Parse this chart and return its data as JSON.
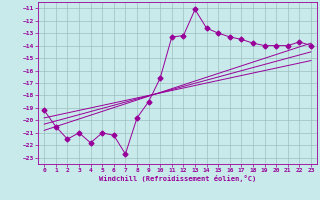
{
  "xlabel": "Windchill (Refroidissement éolien,°C)",
  "background_color": "#c8eaea",
  "grid_color": "#9dbfbf",
  "line_color": "#990099",
  "xlim": [
    -0.5,
    23.5
  ],
  "ylim": [
    -23.5,
    -10.5
  ],
  "xticks": [
    0,
    1,
    2,
    3,
    4,
    5,
    6,
    7,
    8,
    9,
    10,
    11,
    12,
    13,
    14,
    15,
    16,
    17,
    18,
    19,
    20,
    21,
    22,
    23
  ],
  "yticks": [
    -11,
    -12,
    -13,
    -14,
    -15,
    -16,
    -17,
    -18,
    -19,
    -20,
    -21,
    -22,
    -23
  ],
  "data_x": [
    0,
    1,
    2,
    3,
    4,
    5,
    6,
    7,
    8,
    9,
    10,
    11,
    12,
    13,
    14,
    15,
    16,
    17,
    18,
    19,
    20,
    21,
    22,
    23
  ],
  "data_y": [
    -19.2,
    -20.5,
    -21.5,
    -21.0,
    -21.8,
    -21.0,
    -21.2,
    -22.7,
    -19.8,
    -18.5,
    -16.6,
    -13.3,
    -13.2,
    -11.1,
    -12.6,
    -13.0,
    -13.3,
    -13.5,
    -13.8,
    -14.0,
    -14.0,
    -14.0,
    -13.7,
    -14.0
  ],
  "ref_lines": [
    {
      "x": [
        0,
        23
      ],
      "y": [
        -20.8,
        -13.8
      ]
    },
    {
      "x": [
        0,
        23
      ],
      "y": [
        -20.3,
        -14.5
      ]
    },
    {
      "x": [
        0,
        23
      ],
      "y": [
        -19.8,
        -15.2
      ]
    }
  ]
}
